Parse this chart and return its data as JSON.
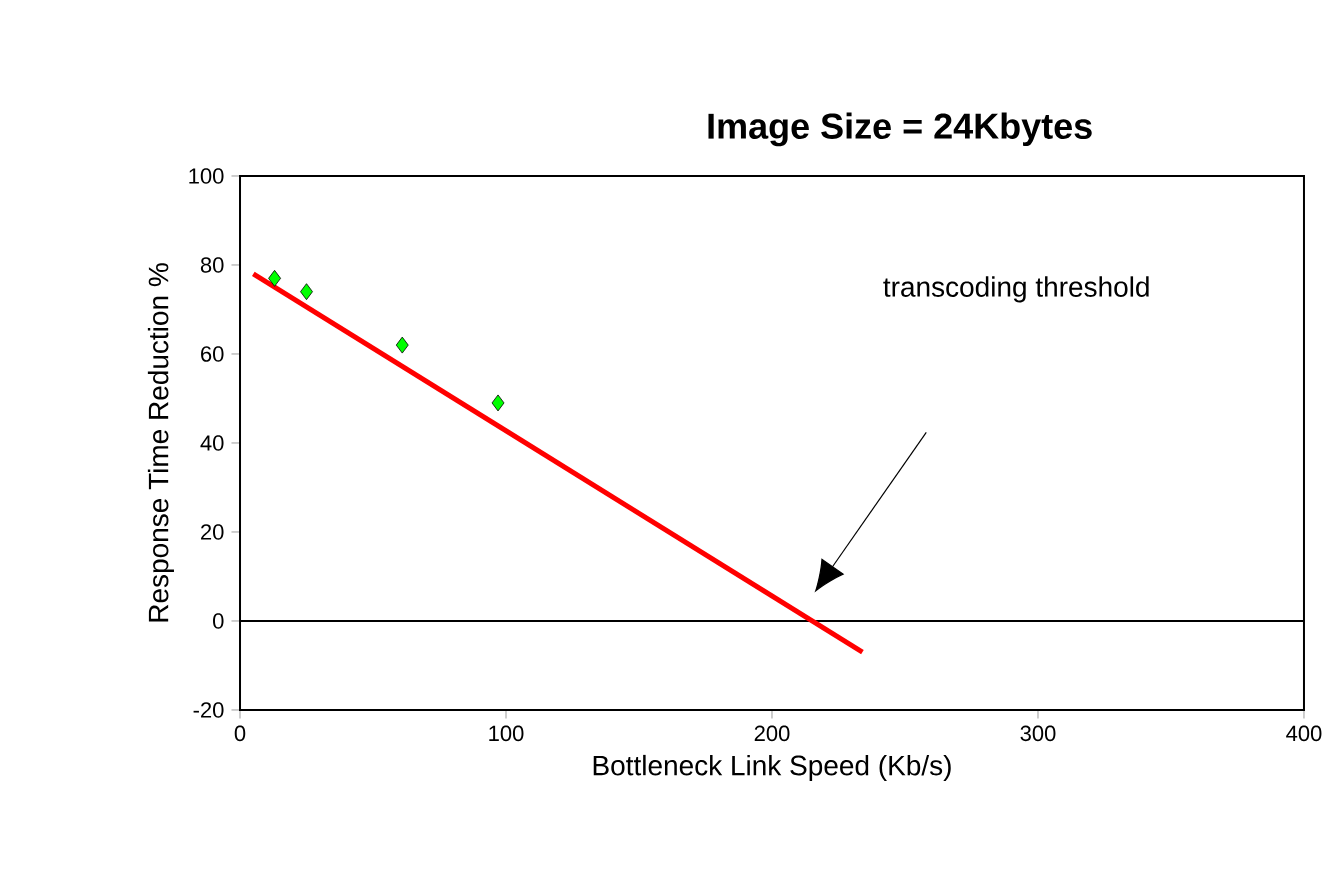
{
  "chart_data": {
    "type": "scatter",
    "title": "Image Size = 24Kbytes",
    "xlabel": "Bottleneck Link Speed (Kb/s)",
    "ylabel": "Response Time Reduction %",
    "series": [
      {
        "color": "#00ff00",
        "marker": "diamond",
        "x": [
          13,
          25,
          61,
          97
        ],
        "values": [
          77,
          74,
          62,
          49
        ]
      },
      {
        "type": "line",
        "color": "#ff0000",
        "marker": "none",
        "x": [
          5,
          234
        ],
        "values": [
          78,
          -7
        ]
      }
    ],
    "xlim": [
      0,
      400
    ],
    "ylim": [
      -20,
      100
    ],
    "xticks": [
      0,
      100,
      200,
      300,
      400
    ],
    "yticks": [
      -20,
      0,
      20,
      40,
      60,
      80,
      100
    ],
    "ref_lines": [
      {
        "axis": "y",
        "value": 0,
        "color": "#000000"
      }
    ],
    "annotations": [
      "transcoding threshold"
    ],
    "grid": false
  }
}
